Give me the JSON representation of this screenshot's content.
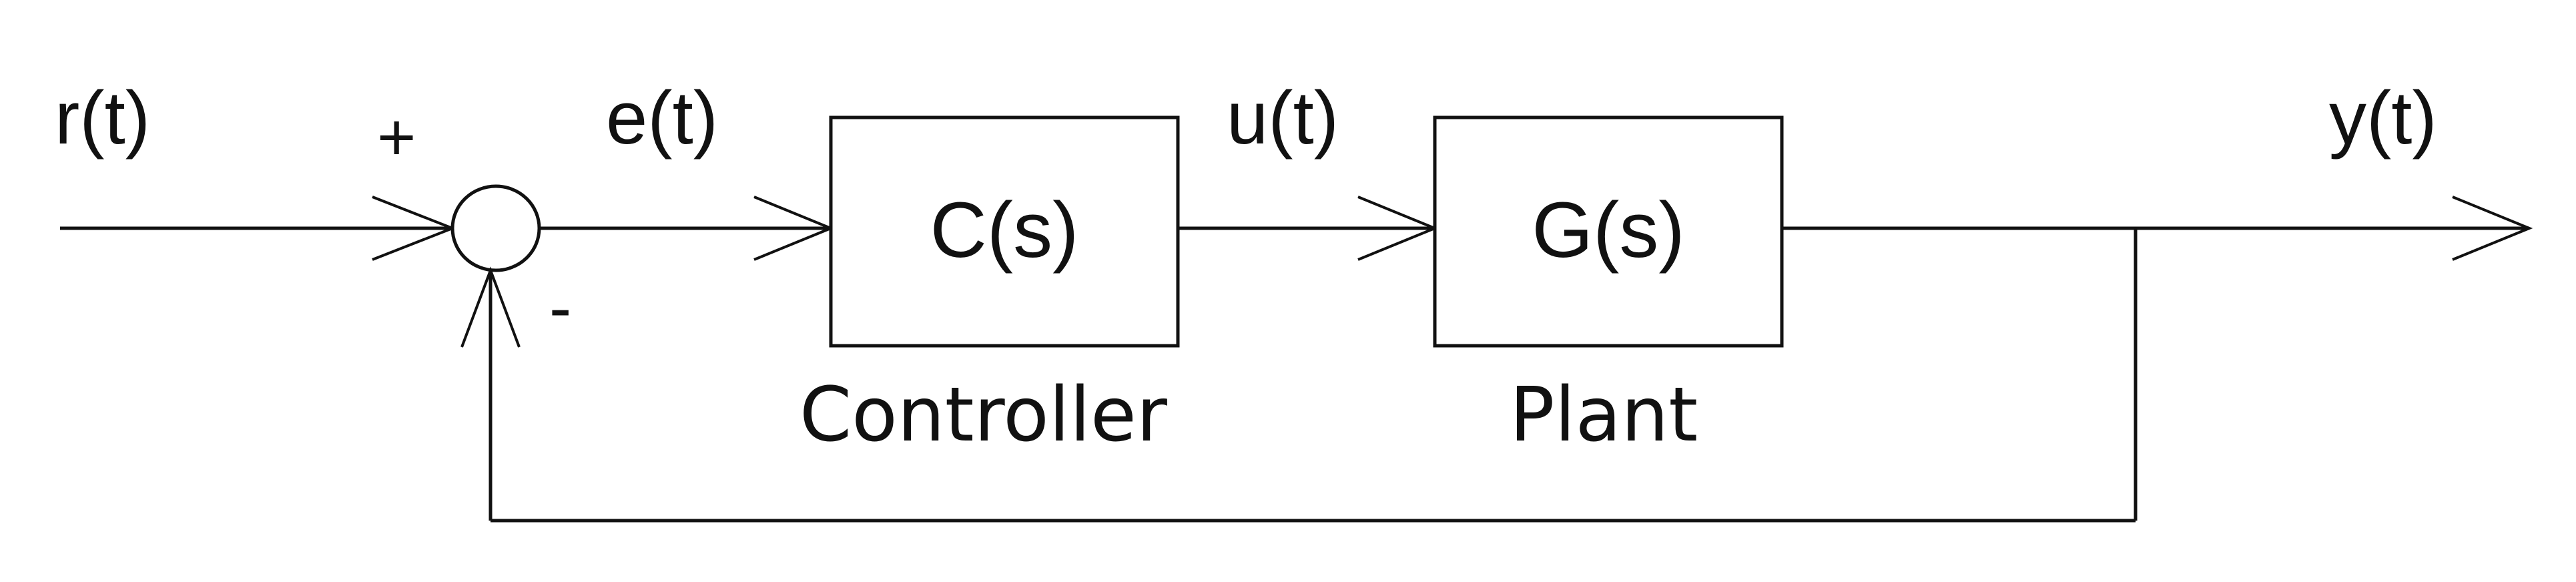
{
  "signals": {
    "reference": "r(t)",
    "error": "e(t)",
    "control": "u(t)",
    "output": "y(t)"
  },
  "summing_junction": {
    "plus_sign": "+",
    "minus_sign": "-"
  },
  "blocks": {
    "controller": {
      "transfer_function": "C(s)",
      "caption": "Controller"
    },
    "plant": {
      "transfer_function": "G(s)",
      "caption": "Plant"
    }
  },
  "colors": {
    "stroke": "#111111",
    "background": "#ffffff"
  }
}
